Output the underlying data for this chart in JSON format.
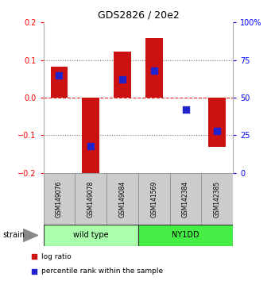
{
  "title": "GDS2826 / 20e2",
  "samples": [
    "GSM149076",
    "GSM149078",
    "GSM149084",
    "GSM141569",
    "GSM142384",
    "GSM142385"
  ],
  "log_ratios": [
    0.083,
    -0.205,
    0.122,
    0.158,
    0.0,
    -0.13
  ],
  "percentile_ranks": [
    65,
    18,
    62,
    68,
    42,
    28
  ],
  "groups": [
    {
      "label": "wild type",
      "start": 0,
      "end": 3,
      "color": "#aaffaa"
    },
    {
      "label": "NY1DD",
      "start": 3,
      "end": 6,
      "color": "#44ee44"
    }
  ],
  "ylim_left": [
    -0.2,
    0.2
  ],
  "ylim_right": [
    0,
    100
  ],
  "yticks_left": [
    -0.2,
    -0.1,
    0.0,
    0.1,
    0.2
  ],
  "yticks_right": [
    0,
    25,
    50,
    75,
    100
  ],
  "ytick_labels_right": [
    "0",
    "25",
    "50",
    "75",
    "100%"
  ],
  "bar_color": "#cc1111",
  "dot_color": "#2222cc",
  "bar_width": 0.55,
  "dot_size": 28,
  "zero_line_color": "#dd2222",
  "dotted_line_color": "#777777",
  "legend_log_ratio": "log ratio",
  "legend_percentile": "percentile rank within the sample",
  "strain_label": "strain",
  "sample_box_color": "#cccccc",
  "sample_box_edge": "#999999"
}
